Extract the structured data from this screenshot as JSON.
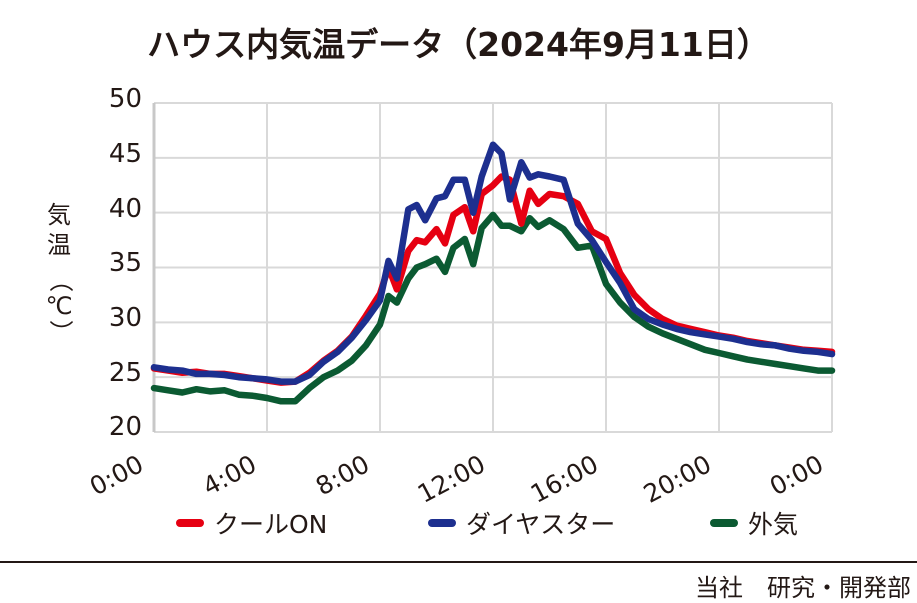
{
  "title": "ハウス内気温データ（2024年9月11日）",
  "y_axis_label": [
    "気",
    "温",
    "（℃）"
  ],
  "y_ticks": [
    "50",
    "45",
    "40",
    "35",
    "30",
    "25",
    "20"
  ],
  "x_ticks": [
    "0:00",
    "4:00",
    "8:00",
    "12:00",
    "16:00",
    "20:00",
    "0:00"
  ],
  "legend": [
    {
      "label": "クールON",
      "color": "#e60012"
    },
    {
      "label": "ダイヤスター",
      "color": "#1d2f8f"
    },
    {
      "label": "外気",
      "color": "#0b5a32"
    }
  ],
  "credit": "当社　研究・開発部",
  "chart_data": {
    "type": "line",
    "title": "ハウス内気温データ（2024年9月11日）",
    "xlabel": "",
    "ylabel": "気温（℃）",
    "ylim": [
      20,
      50
    ],
    "xlim_hours": [
      0,
      24
    ],
    "x_tick_labels": [
      "0:00",
      "4:00",
      "8:00",
      "12:00",
      "16:00",
      "20:00",
      "0:00"
    ],
    "grid": true,
    "legend_position": "bottom",
    "x": [
      0,
      0.5,
      1,
      1.5,
      2,
      2.5,
      3,
      3.5,
      4,
      4.5,
      5,
      5.5,
      6,
      6.5,
      7,
      7.5,
      8,
      8.3,
      8.6,
      9,
      9.3,
      9.6,
      10,
      10.3,
      10.6,
      11,
      11.3,
      11.6,
      12,
      12.3,
      12.6,
      13,
      13.3,
      13.6,
      14,
      14.5,
      15,
      15.5,
      16,
      16.5,
      17,
      17.5,
      18,
      18.5,
      19,
      19.5,
      20,
      20.5,
      21,
      21.5,
      22,
      22.5,
      23,
      23.5,
      24
    ],
    "series": [
      {
        "name": "クールON",
        "color": "#e60012",
        "values": [
          25.8,
          25.6,
          25.4,
          25.5,
          25.3,
          25.3,
          25.1,
          24.9,
          24.7,
          24.5,
          24.6,
          25.4,
          26.5,
          27.4,
          28.7,
          30.6,
          32.6,
          35.0,
          33.0,
          36.5,
          37.5,
          37.3,
          38.5,
          37.2,
          39.8,
          40.5,
          38.3,
          41.7,
          42.5,
          43.3,
          43.0,
          39.0,
          42.0,
          40.8,
          41.7,
          41.5,
          40.8,
          38.3,
          37.6,
          34.5,
          32.5,
          31.2,
          30.3,
          29.7,
          29.4,
          29.1,
          28.8,
          28.6,
          28.3,
          28.1,
          27.9,
          27.7,
          27.5,
          27.4,
          27.3
        ]
      },
      {
        "name": "ダイヤスター",
        "color": "#1d2f8f",
        "values": [
          25.9,
          25.7,
          25.6,
          25.3,
          25.3,
          25.2,
          25.0,
          24.9,
          24.8,
          24.6,
          24.6,
          25.2,
          26.4,
          27.3,
          28.6,
          30.2,
          32.0,
          35.6,
          34.0,
          40.3,
          40.7,
          39.3,
          41.3,
          41.5,
          43.0,
          43.0,
          40.0,
          43.3,
          46.2,
          45.4,
          41.2,
          44.6,
          43.2,
          43.5,
          43.3,
          43.0,
          39.0,
          37.5,
          35.5,
          33.6,
          31.2,
          30.3,
          29.8,
          29.4,
          29.1,
          28.9,
          28.7,
          28.5,
          28.2,
          28.0,
          27.9,
          27.6,
          27.4,
          27.3,
          27.1
        ]
      },
      {
        "name": "外気",
        "color": "#0b5a32",
        "values": [
          24.0,
          23.8,
          23.6,
          23.9,
          23.7,
          23.8,
          23.4,
          23.3,
          23.1,
          22.8,
          22.8,
          24.0,
          25.0,
          25.6,
          26.5,
          27.9,
          29.8,
          32.4,
          31.8,
          34.0,
          35.0,
          35.3,
          35.8,
          34.6,
          36.8,
          37.6,
          35.3,
          38.6,
          39.8,
          38.8,
          38.8,
          38.3,
          39.5,
          38.7,
          39.3,
          38.5,
          36.8,
          37.0,
          33.5,
          31.8,
          30.5,
          29.6,
          29.0,
          28.5,
          28.0,
          27.5,
          27.2,
          26.9,
          26.6,
          26.4,
          26.2,
          26.0,
          25.8,
          25.6,
          25.6
        ]
      }
    ]
  }
}
